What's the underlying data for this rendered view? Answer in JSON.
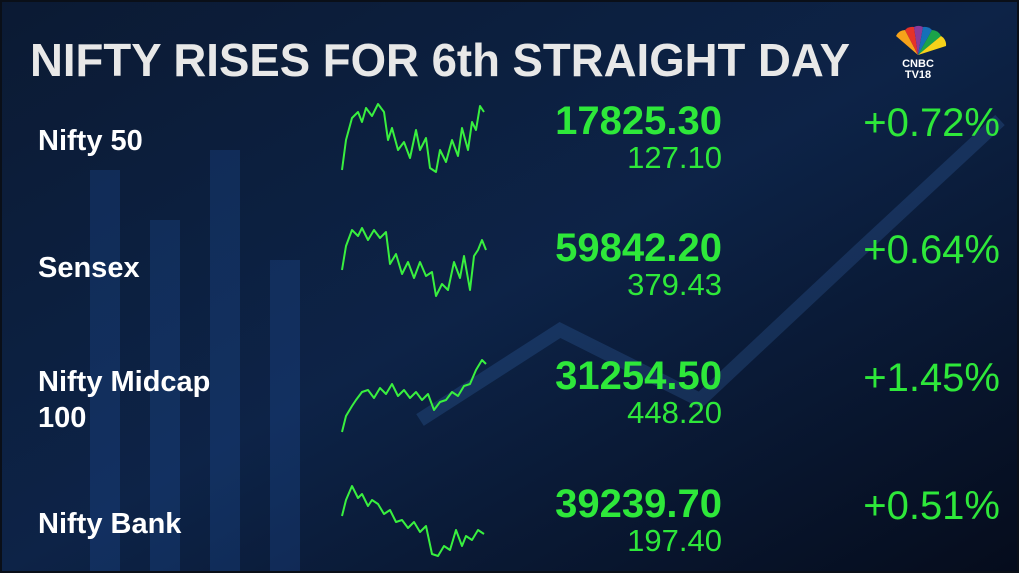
{
  "header": {
    "title": "NIFTY RISES FOR 6th STRAIGHT DAY",
    "logo": [
      "CNBC",
      "TV18"
    ]
  },
  "table": {
    "rows": [
      {
        "name": "Nifty 50",
        "value": "17825.30",
        "change": "127.10",
        "percent": "+0.72%"
      },
      {
        "name": "Sensex",
        "value": "59842.20",
        "change": "379.43",
        "percent": "+0.64%"
      },
      {
        "name": "Nifty Midcap 100",
        "value": "31254.50",
        "change": "448.20",
        "percent": "+1.45%"
      },
      {
        "name": "Nifty Bank",
        "value": "39239.70",
        "change": "197.40",
        "percent": "+0.51%"
      }
    ]
  }
}
